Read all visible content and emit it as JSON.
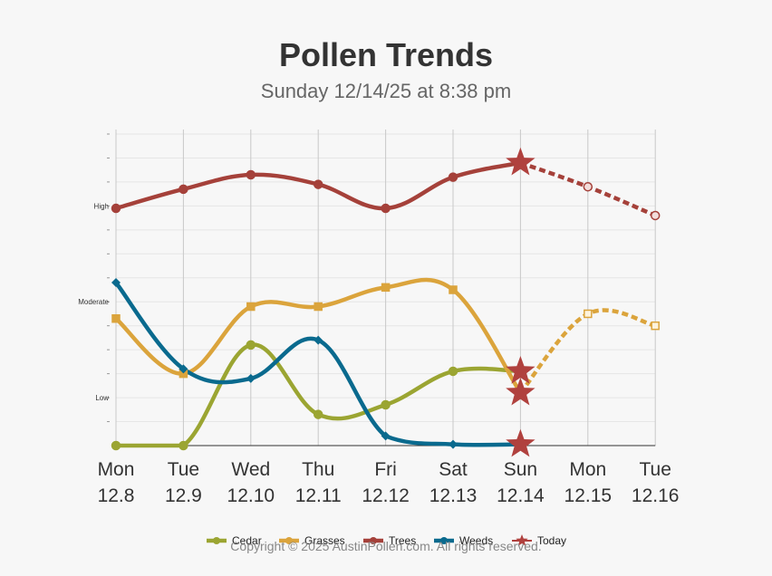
{
  "chart_data": {
    "type": "line",
    "title": "Pollen Trends",
    "subtitle": "Sunday 12/14/25 at 8:38 pm",
    "x": [
      {
        "day": "Mon",
        "date": "12.8"
      },
      {
        "day": "Tue",
        "date": "12.9"
      },
      {
        "day": "Wed",
        "date": "12.10"
      },
      {
        "day": "Thu",
        "date": "12.11"
      },
      {
        "day": "Fri",
        "date": "12.12"
      },
      {
        "day": "Sat",
        "date": "12.13"
      },
      {
        "day": "Sun",
        "date": "12.14"
      },
      {
        "day": "Mon",
        "date": "12.15"
      },
      {
        "day": "Tue",
        "date": "12.16"
      }
    ],
    "y_levels": [
      {
        "label": "Low",
        "value": 2
      },
      {
        "label": "Moderate",
        "value": 6
      },
      {
        "label": "High",
        "value": 10
      }
    ],
    "ylim": [
      0,
      13
    ],
    "today_index": 6,
    "series": [
      {
        "name": "Cedar",
        "color": "#9ba532",
        "marker": "circle",
        "values": [
          0,
          0,
          4.2,
          1.3,
          1.7,
          3.1,
          3.1,
          null,
          null
        ]
      },
      {
        "name": "Grasses",
        "color": "#dba43c",
        "marker": "square",
        "values": [
          5.3,
          3.0,
          5.8,
          5.8,
          6.6,
          6.5,
          2.2,
          5.5,
          5.0
        ]
      },
      {
        "name": "Trees",
        "color": "#a5413a",
        "marker": "circle",
        "values": [
          9.9,
          10.7,
          11.3,
          10.9,
          9.9,
          11.2,
          11.8,
          10.8,
          9.6
        ]
      },
      {
        "name": "Weeds",
        "color": "#0a6a8e",
        "marker": "diamond",
        "values": [
          6.8,
          3.2,
          2.8,
          4.4,
          0.4,
          0.05,
          0.05,
          null,
          null
        ]
      }
    ],
    "legend": [
      {
        "name": "Cedar",
        "color": "#9ba532"
      },
      {
        "name": "Grasses",
        "color": "#dba43c"
      },
      {
        "name": "Trees",
        "color": "#a5413a"
      },
      {
        "name": "Weeds",
        "color": "#0a6a8e"
      },
      {
        "name": "Today",
        "color": "#b0413e"
      }
    ],
    "legend_position": "bottom-center"
  },
  "footer": {
    "copyright": "Copyright © 2025 AustinPollen.com.  All rights reserved."
  }
}
